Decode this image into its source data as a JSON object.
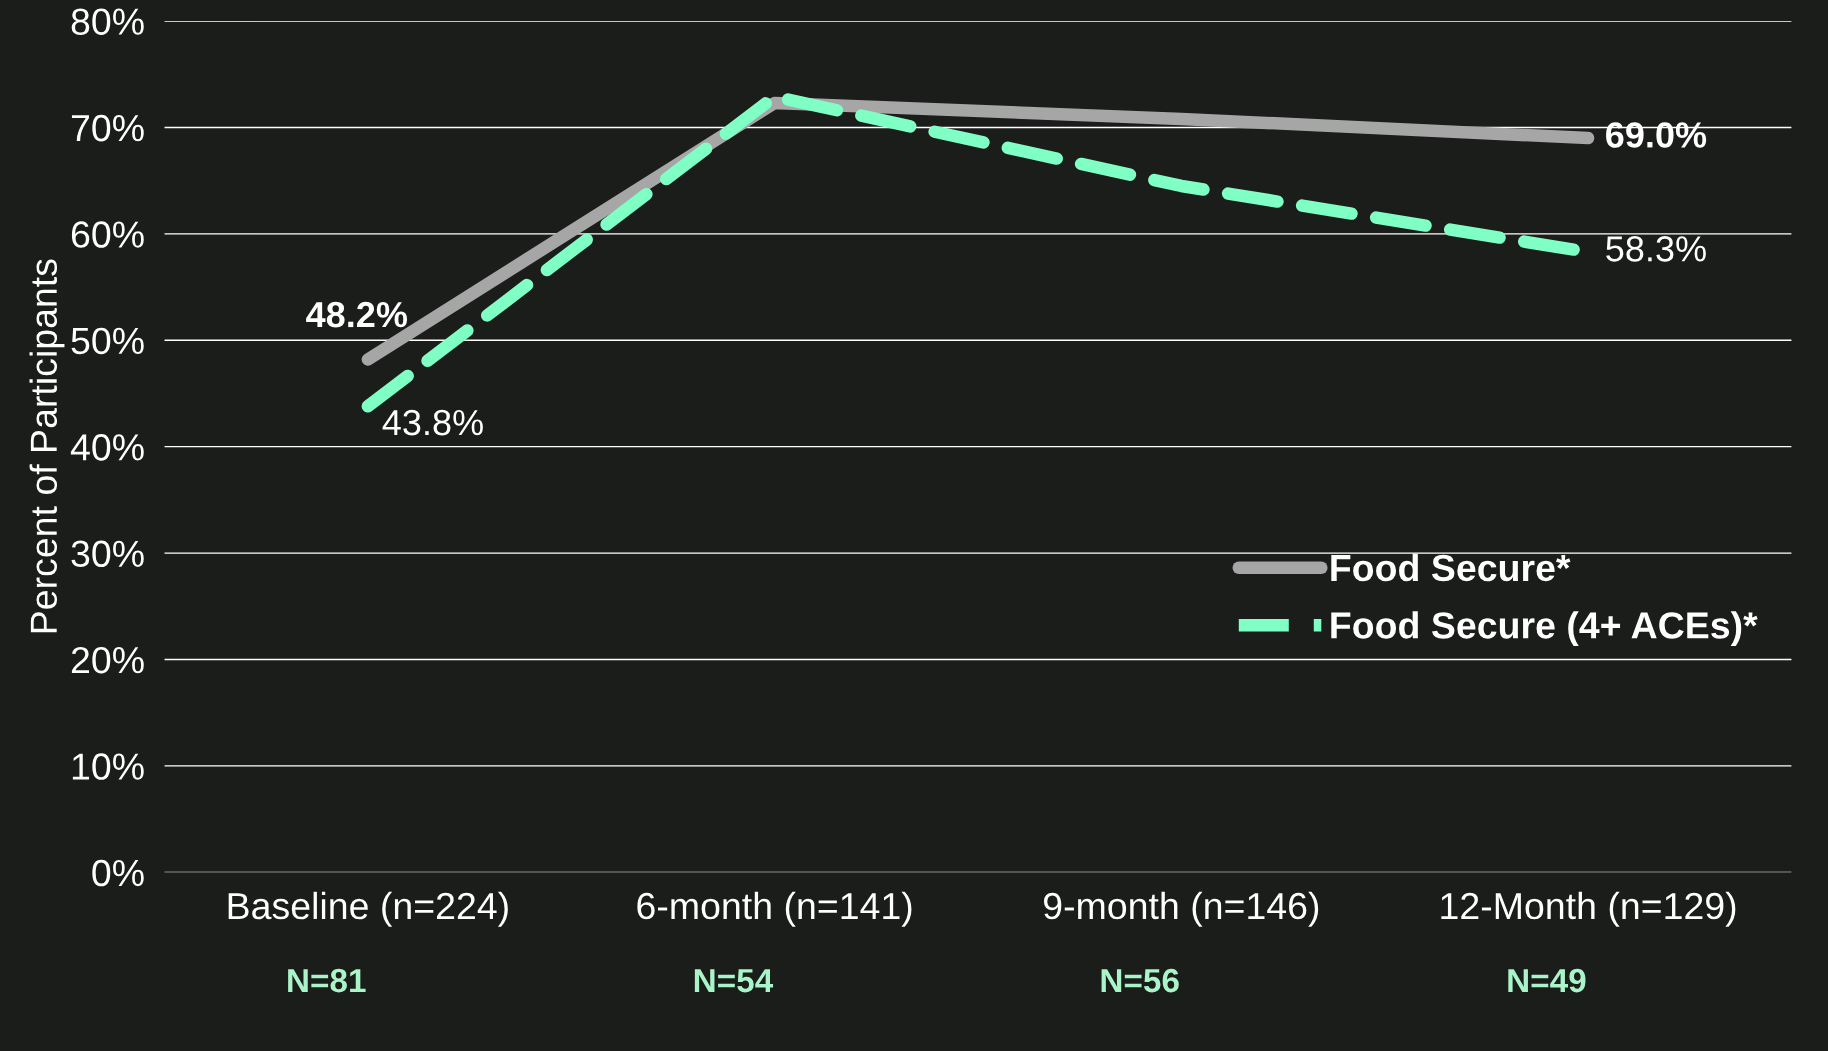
{
  "chart_data": {
    "type": "line",
    "ylabel": "Percent of Participants",
    "categories": [
      "Baseline (n=224)",
      "6-month (n=141)",
      "9-month (n=146)",
      "12-Month (n=129)"
    ],
    "series": [
      {
        "name": "Food Secure*",
        "color": "#a6a6a6",
        "line_style": "solid",
        "values": [
          48.2,
          72.3,
          70.8,
          69.0
        ],
        "value_labels": [
          "48.2%",
          null,
          null,
          "69.0%"
        ]
      },
      {
        "name": "Food Secure (4+ ACEs)*",
        "color": "#7fffc4",
        "line_style": "dashed",
        "values": [
          43.8,
          72.9,
          64.5,
          58.3
        ],
        "value_labels": [
          "43.8%",
          null,
          null,
          "58.3%"
        ]
      }
    ],
    "ylim": [
      0,
      80
    ],
    "yticks": [
      {
        "value": 0,
        "label": "0%"
      },
      {
        "value": 10,
        "label": "10%"
      },
      {
        "value": 20,
        "label": "20%"
      },
      {
        "value": 30,
        "label": "30%"
      },
      {
        "value": 40,
        "label": "40%"
      },
      {
        "value": 50,
        "label": "50%"
      },
      {
        "value": 60,
        "label": "60%"
      },
      {
        "value": 70,
        "label": "70%"
      },
      {
        "value": 80,
        "label": "80%"
      }
    ],
    "grid": "y",
    "legend": "right",
    "marker": "none",
    "annotations": [
      "N=81",
      "N=54",
      "N=56",
      "N=49"
    ]
  }
}
